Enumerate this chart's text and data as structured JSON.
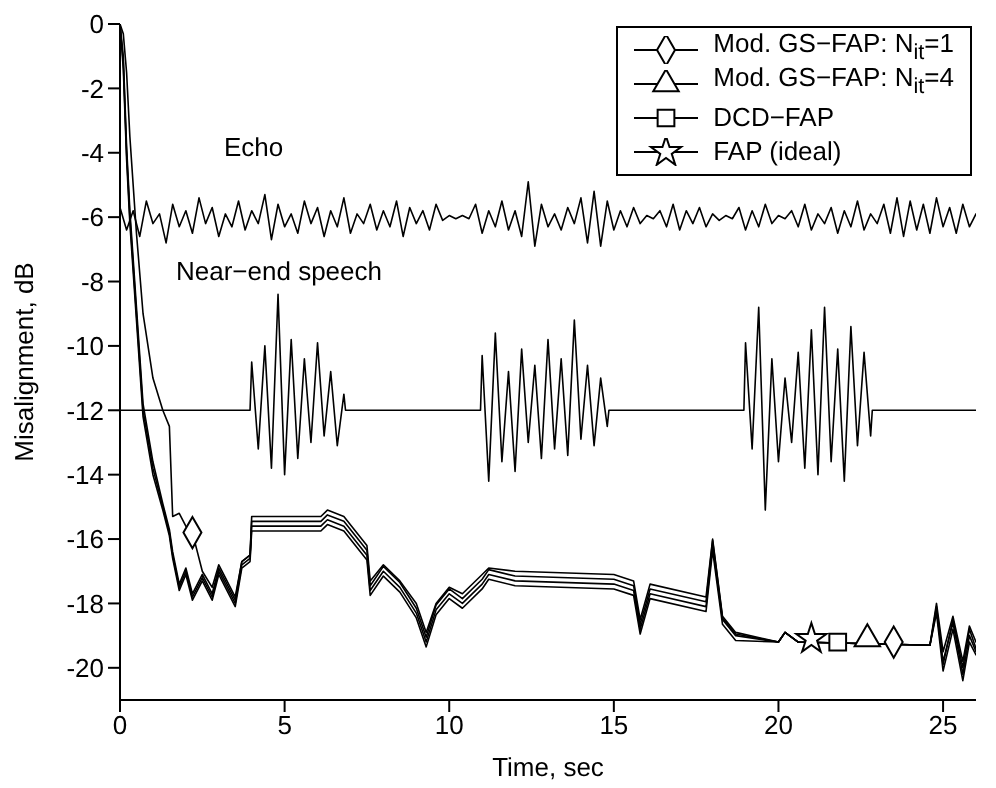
{
  "chart_data": {
    "type": "line",
    "xlabel": "Time, sec",
    "ylabel": "Misalignment, dB",
    "xlim": [
      0,
      26
    ],
    "xticks": [
      0,
      5,
      10,
      15,
      20,
      25
    ],
    "ylim": [
      -21,
      0
    ],
    "yticks": [
      0,
      -2,
      -4,
      -6,
      -8,
      -10,
      -12,
      -14,
      -16,
      -18,
      -20
    ],
    "grid": false,
    "legend": "top right",
    "annotations": [
      "Echo",
      "Near−end speech"
    ],
    "x": [
      0,
      0.1,
      0.2,
      0.3,
      0.5,
      0.7,
      1.0,
      1.3,
      1.5,
      1.6,
      1.8,
      2.0,
      2.2,
      2.5,
      2.8,
      3.0,
      3.2,
      3.5,
      3.7,
      3.95,
      4.0,
      6.1,
      6.3,
      6.8,
      7.5,
      7.6,
      8.0,
      8.5,
      9.0,
      9.3,
      9.6,
      10.0,
      10.4,
      11.0,
      11.2,
      12.0,
      15.0,
      15.6,
      15.8,
      16.1,
      17.8,
      18.0,
      18.3,
      18.7,
      20.0,
      20.2,
      20.6,
      24.6,
      24.8,
      25.0,
      25.3,
      25.6,
      25.8,
      26
    ],
    "series": [
      {
        "color": "#000000",
        "x": [
          0,
          0.2,
          0.4,
          0.6,
          0.8,
          1,
          1.2,
          1.4,
          1.6,
          1.8,
          2,
          2.2,
          2.4,
          2.6,
          2.8,
          3,
          3.2,
          3.4,
          3.6,
          3.8,
          4,
          4.2,
          4.4,
          4.6,
          4.8,
          5,
          5.2,
          5.4,
          5.6,
          5.8,
          6,
          6.2,
          6.4,
          6.6,
          6.8,
          7,
          7.2,
          7.4,
          7.6,
          7.8,
          8,
          8.2,
          8.4,
          8.6,
          8.8,
          9,
          9.2,
          9.4,
          9.6,
          9.8,
          10,
          10.2,
          10.4,
          10.6,
          10.8,
          11,
          11.2,
          11.4,
          11.6,
          11.8,
          12,
          12.2,
          12.4,
          12.6,
          12.8,
          13,
          13.2,
          13.4,
          13.6,
          13.8,
          14,
          14.2,
          14.4,
          14.6,
          14.8,
          15,
          15.2,
          15.4,
          15.6,
          15.8,
          16,
          16.2,
          16.4,
          16.6,
          16.8,
          17,
          17.2,
          17.4,
          17.6,
          17.8,
          18,
          18.2,
          18.4,
          18.6,
          18.8,
          19,
          19.2,
          19.4,
          19.6,
          19.8,
          20,
          20.2,
          20.4,
          20.6,
          20.8,
          21,
          21.2,
          21.4,
          21.6,
          21.8,
          22,
          22.2,
          22.4,
          22.6,
          22.8,
          23,
          23.2,
          23.4,
          23.6,
          23.8,
          24,
          24.2,
          24.4,
          24.6,
          24.8,
          25,
          25.2,
          25.4,
          25.6,
          25.8,
          26
        ],
        "values": [
          -5.7,
          -6.4,
          -5.8,
          -6.6,
          -5.5,
          -6.2,
          -5.9,
          -6.8,
          -5.6,
          -6.3,
          -5.8,
          -6.5,
          -5.4,
          -6.2,
          -5.7,
          -6.6,
          -5.9,
          -6.3,
          -5.5,
          -6.4,
          -5.8,
          -6.2,
          -5.3,
          -6.7,
          -5.6,
          -6.3,
          -5.9,
          -6.5,
          -5.5,
          -6.2,
          -5.7,
          -6.6,
          -5.8,
          -6.3,
          -5.4,
          -6.5,
          -5.9,
          -6.2,
          -5.6,
          -6.4,
          -5.8,
          -6.3,
          -5.5,
          -6.6,
          -5.7,
          -6.2,
          -5.8,
          -6.4,
          -5.6,
          -6.1,
          -5.95,
          -6.05,
          -5.95,
          -6.05,
          -5.6,
          -6.5,
          -5.8,
          -6.3,
          -5.5,
          -6.4,
          -5.8,
          -6.6,
          -4.9,
          -6.9,
          -5.6,
          -6.3,
          -5.9,
          -6.4,
          -5.7,
          -6.2,
          -5.4,
          -6.8,
          -5.2,
          -6.9,
          -5.5,
          -6.4,
          -5.8,
          -6.3,
          -5.7,
          -6.2,
          -5.95,
          -6.05,
          -5.8,
          -6.3,
          -5.6,
          -6.4,
          -5.8,
          -6.2,
          -5.7,
          -6.3,
          -5.9,
          -6.1,
          -5.95,
          -6.05,
          -5.7,
          -6.4,
          -5.8,
          -6.3,
          -5.6,
          -6.2,
          -5.95,
          -6.05,
          -5.8,
          -6.3,
          -5.6,
          -6.4,
          -5.9,
          -6.2,
          -5.7,
          -6.5,
          -5.8,
          -6.3,
          -5.5,
          -6.4,
          -5.9,
          -6.2,
          -5.6,
          -6.5,
          -5.4,
          -6.6,
          -5.5,
          -6.4,
          -5.6,
          -6.5,
          -5.4,
          -6.3,
          -5.7,
          -6.5,
          -5.6,
          -6.3,
          -5.9
        ]
      },
      {
        "color": "#000000",
        "x": [
          0,
          3.95,
          4.0,
          4.2,
          4.4,
          4.6,
          4.8,
          5.0,
          5.2,
          5.4,
          5.6,
          5.8,
          6.0,
          6.2,
          6.4,
          6.6,
          6.8,
          6.85,
          10.95,
          11.0,
          11.2,
          11.4,
          11.6,
          11.8,
          12.0,
          12.2,
          12.4,
          12.6,
          12.8,
          13.0,
          13.2,
          13.4,
          13.6,
          13.8,
          14.0,
          14.2,
          14.4,
          14.6,
          14.8,
          14.85,
          18.95,
          19.0,
          19.2,
          19.4,
          19.6,
          19.8,
          20.0,
          20.2,
          20.4,
          20.6,
          20.8,
          21.0,
          21.2,
          21.4,
          21.6,
          21.8,
          22.0,
          22.2,
          22.4,
          22.6,
          22.8,
          22.85,
          26
        ],
        "values": [
          -12,
          -12,
          -10.5,
          -13.2,
          -10.0,
          -13.8,
          -8.4,
          -14.0,
          -9.8,
          -13.5,
          -10.4,
          -13.0,
          -9.9,
          -12.8,
          -10.8,
          -13.1,
          -11.5,
          -12,
          -12,
          -10.3,
          -14.2,
          -9.6,
          -13.6,
          -10.8,
          -13.9,
          -10.1,
          -13.0,
          -10.6,
          -13.5,
          -9.8,
          -13.2,
          -10.4,
          -13.4,
          -9.2,
          -12.9,
          -10.6,
          -13.1,
          -11.0,
          -12.5,
          -12,
          -12,
          -9.9,
          -13.2,
          -8.8,
          -15.1,
          -10.4,
          -13.6,
          -11.0,
          -13.0,
          -10.2,
          -13.8,
          -9.5,
          -14.0,
          -8.8,
          -13.6,
          -10.1,
          -14.2,
          -9.4,
          -13.1,
          -10.2,
          -12.8,
          -12,
          -12
        ]
      },
      {
        "name": "Mod. GS−FAP: N$_{it}$=1",
        "color": "#000000",
        "values": [
          0,
          -0.3,
          -1.5,
          -3.5,
          -6.5,
          -9,
          -11,
          -12,
          -12.5,
          -15.3,
          -15.2,
          -15.6,
          -15.8,
          -17.0,
          -17.5,
          -16.8,
          -17.2,
          -17.8,
          -16.7,
          -16.5,
          -15.3,
          -15.3,
          -15.1,
          -15.3,
          -16.2,
          -17.3,
          -16.8,
          -17.3,
          -18.0,
          -18.9,
          -18.0,
          -17.5,
          -17.7,
          -17.1,
          -16.9,
          -17.0,
          -17.1,
          -17.3,
          -18.5,
          -17.4,
          -17.8,
          -16.0,
          -18.4,
          -18.9,
          -19.2,
          -18.9,
          -19.2,
          -19.3,
          -18.0,
          -19.5,
          -18.4,
          -19.8,
          -18.7,
          -19.2
        ]
      },
      {
        "name": "Mod. GS−FAP: N$_{it}$=4",
        "color": "#000000",
        "values": [
          0,
          -1.0,
          -3.8,
          -5.8,
          -8.8,
          -11.8,
          -13.6,
          -14.9,
          -15.7,
          -16.4,
          -17.4,
          -16.9,
          -17.7,
          -17.1,
          -17.7,
          -16.9,
          -17.3,
          -17.9,
          -16.7,
          -16.5,
          -15.45,
          -15.45,
          -15.25,
          -15.45,
          -16.35,
          -17.45,
          -16.85,
          -17.35,
          -18.15,
          -19.05,
          -18.05,
          -17.55,
          -17.85,
          -17.25,
          -16.95,
          -17.15,
          -17.25,
          -17.45,
          -18.65,
          -17.55,
          -17.95,
          -16.05,
          -18.45,
          -18.95,
          -19.2,
          -18.9,
          -19.2,
          -19.3,
          -18.1,
          -19.9,
          -18.5,
          -20.0,
          -18.8,
          -19.4
        ]
      },
      {
        "name": "DCD−FAP",
        "color": "#000000",
        "values": [
          0,
          -1.2,
          -4,
          -6,
          -9,
          -12,
          -13.8,
          -15,
          -15.8,
          -16.5,
          -17.5,
          -17,
          -17.8,
          -17.2,
          -17.8,
          -17,
          -17.4,
          -18,
          -16.8,
          -16.6,
          -15.6,
          -15.6,
          -15.4,
          -15.6,
          -16.5,
          -17.6,
          -17,
          -17.5,
          -18.3,
          -19.2,
          -18.2,
          -17.7,
          -18.0,
          -17.4,
          -17.1,
          -17.3,
          -17.4,
          -17.6,
          -18.8,
          -17.7,
          -18.1,
          -16.2,
          -18.5,
          -19,
          -19.2,
          -18.9,
          -19.2,
          -19.3,
          -18.2,
          -19.8,
          -18.6,
          -20.2,
          -19.0,
          -19.5
        ]
      },
      {
        "name": "FAP (ideal)",
        "color": "#000000",
        "values": [
          0,
          -1.4,
          -4.2,
          -6.2,
          -9.2,
          -12.2,
          -14,
          -15.1,
          -15.9,
          -16.6,
          -17.6,
          -17.1,
          -17.9,
          -17.3,
          -17.9,
          -17.1,
          -17.5,
          -18.1,
          -16.9,
          -16.7,
          -15.75,
          -15.75,
          -15.55,
          -15.75,
          -16.65,
          -17.75,
          -17.15,
          -17.65,
          -18.45,
          -19.35,
          -18.35,
          -17.85,
          -18.15,
          -17.55,
          -17.25,
          -17.45,
          -17.55,
          -17.75,
          -18.95,
          -17.85,
          -18.25,
          -16.35,
          -18.65,
          -19.15,
          -19.2,
          -18.9,
          -19.2,
          -19.3,
          -18.3,
          -20.1,
          -18.8,
          -20.4,
          -19.2,
          -19.6
        ]
      },
      {
        "type": "scatter",
        "color": "#000000",
        "marker": "diamond",
        "x": [
          2.2,
          23.5
        ],
        "values": [
          -15.8,
          -19.2
        ]
      },
      {
        "type": "scatter",
        "color": "#000000",
        "marker": "triangle",
        "x": [
          22.7
        ],
        "values": [
          -19.1
        ]
      },
      {
        "type": "scatter",
        "color": "#000000",
        "marker": "square",
        "x": [
          21.8
        ],
        "values": [
          -19.2
        ]
      },
      {
        "type": "scatter",
        "color": "#000000",
        "marker": "star",
        "x": [
          21.0
        ],
        "values": [
          -19.1
        ]
      }
    ]
  }
}
